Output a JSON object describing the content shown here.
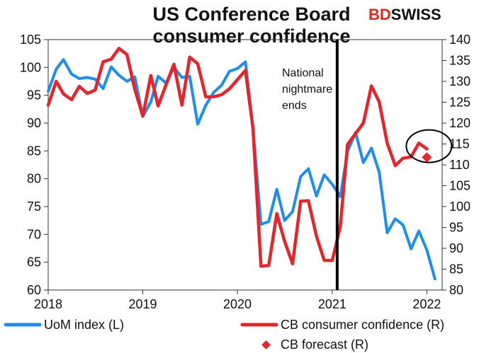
{
  "chart_data": {
    "type": "line",
    "title_lines": [
      "US Conference Board",
      "consumer confidence"
    ],
    "brand": {
      "part1": "BD",
      "part2": "SWISS"
    },
    "annotation_lines": [
      "National",
      "nightmare",
      "ends"
    ],
    "x_ticks": [
      "2018",
      "2019",
      "2020",
      "2021",
      "2022"
    ],
    "x_range": [
      "2018-01-01",
      "2022-03-01"
    ],
    "y_left_ticks": [
      "60",
      "65",
      "70",
      "75",
      "80",
      "85",
      "90",
      "95",
      "100",
      "105"
    ],
    "y_left_range": [
      60,
      105
    ],
    "y_right_ticks": [
      "80",
      "85",
      "90",
      "95",
      "100",
      "105",
      "110",
      "115",
      "120",
      "125",
      "130",
      "135",
      "140"
    ],
    "y_right_range": [
      80,
      140
    ],
    "event_line_date": "2021-01-20",
    "colors": {
      "uom": "#1f8ded",
      "cb": "#e8232a",
      "event": "#000000",
      "circle": "#000000"
    },
    "series": [
      {
        "name": "UoM index (L)",
        "axis": "left",
        "dates": [
          "2018-01",
          "2018-02",
          "2018-03",
          "2018-04",
          "2018-05",
          "2018-06",
          "2018-07",
          "2018-08",
          "2018-09",
          "2018-10",
          "2018-11",
          "2018-12",
          "2019-01",
          "2019-02",
          "2019-03",
          "2019-04",
          "2019-05",
          "2019-06",
          "2019-07",
          "2019-08",
          "2019-09",
          "2019-10",
          "2019-11",
          "2019-12",
          "2020-01",
          "2020-02",
          "2020-03",
          "2020-04",
          "2020-05",
          "2020-06",
          "2020-07",
          "2020-08",
          "2020-09",
          "2020-10",
          "2020-11",
          "2020-12",
          "2021-01",
          "2021-02",
          "2021-03",
          "2021-04",
          "2021-05",
          "2021-06",
          "2021-07",
          "2021-08",
          "2021-09",
          "2021-10",
          "2021-11",
          "2021-12",
          "2022-01",
          "2022-02"
        ],
        "values": [
          95.7,
          99.7,
          101.4,
          98.8,
          98.0,
          98.2,
          97.9,
          96.2,
          100.1,
          98.6,
          97.5,
          98.3,
          91.2,
          93.8,
          98.4,
          97.2,
          100.0,
          98.2,
          98.4,
          89.8,
          93.2,
          95.5,
          96.8,
          99.3,
          99.8,
          101.0,
          89.1,
          71.8,
          72.3,
          78.1,
          72.5,
          74.1,
          80.4,
          81.8,
          76.9,
          80.7,
          79.0,
          76.8,
          84.9,
          88.3,
          82.9,
          85.5,
          81.2,
          70.3,
          72.8,
          71.7,
          67.4,
          70.6,
          67.2,
          62.0
        ]
      },
      {
        "name": "CB consumer confidence (R)",
        "axis": "right",
        "dates": [
          "2018-01",
          "2018-02",
          "2018-03",
          "2018-04",
          "2018-05",
          "2018-06",
          "2018-07",
          "2018-08",
          "2018-09",
          "2018-10",
          "2018-11",
          "2018-12",
          "2019-01",
          "2019-02",
          "2019-03",
          "2019-04",
          "2019-05",
          "2019-06",
          "2019-07",
          "2019-08",
          "2019-09",
          "2019-10",
          "2019-11",
          "2019-12",
          "2020-01",
          "2020-02",
          "2020-03",
          "2020-04",
          "2020-05",
          "2020-06",
          "2020-07",
          "2020-08",
          "2020-09",
          "2020-10",
          "2020-11",
          "2020-12",
          "2021-01",
          "2021-02",
          "2021-03",
          "2021-04",
          "2021-05",
          "2021-06",
          "2021-07",
          "2021-08",
          "2021-09",
          "2021-10",
          "2021-11",
          "2021-12",
          "2022-01"
        ],
        "values": [
          124.3,
          130.0,
          127.0,
          125.6,
          128.8,
          127.1,
          127.9,
          134.7,
          135.3,
          137.9,
          136.4,
          128.1,
          121.7,
          131.4,
          124.1,
          129.2,
          134.1,
          124.3,
          135.8,
          134.2,
          126.3,
          126.3,
          126.8,
          128.2,
          130.4,
          132.6,
          118.8,
          85.7,
          85.9,
          98.3,
          91.7,
          86.3,
          101.3,
          101.4,
          92.9,
          87.1,
          87.1,
          95.2,
          114.9,
          117.5,
          120.0,
          128.9,
          125.1,
          115.2,
          109.8,
          111.6,
          111.9,
          115.2,
          113.8
        ]
      },
      {
        "name": "CB forecast (R)",
        "axis": "right",
        "dates": [
          "2022-01"
        ],
        "values": [
          111.8
        ]
      }
    ]
  }
}
